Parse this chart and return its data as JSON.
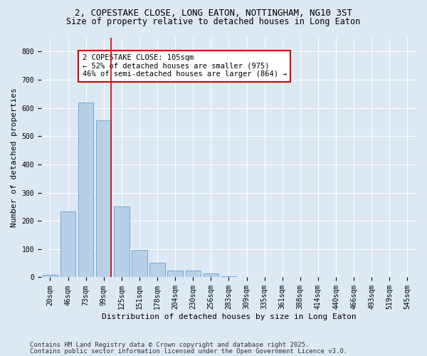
{
  "title_line1": "2, COPESTAKE CLOSE, LONG EATON, NOTTINGHAM, NG10 3ST",
  "title_line2": "Size of property relative to detached houses in Long Eaton",
  "xlabel": "Distribution of detached houses by size in Long Eaton",
  "ylabel": "Number of detached properties",
  "categories": [
    "20sqm",
    "46sqm",
    "73sqm",
    "99sqm",
    "125sqm",
    "151sqm",
    "178sqm",
    "204sqm",
    "230sqm",
    "256sqm",
    "283sqm",
    "309sqm",
    "335sqm",
    "361sqm",
    "388sqm",
    "414sqm",
    "440sqm",
    "466sqm",
    "493sqm",
    "519sqm",
    "545sqm"
  ],
  "values": [
    10,
    232,
    620,
    555,
    252,
    96,
    52,
    25,
    25,
    15,
    4,
    2,
    0,
    0,
    0,
    0,
    0,
    0,
    0,
    0,
    0
  ],
  "bar_color": "#b8cfe8",
  "bar_edge_color": "#6a9fc8",
  "background_color": "#dde8f5",
  "grid_color": "#ffffff",
  "vline_color": "#cc0000",
  "annotation_text": "2 COPESTAKE CLOSE: 105sqm\n← 52% of detached houses are smaller (975)\n46% of semi-detached houses are larger (864) →",
  "annotation_box_color": "#ffffff",
  "annotation_box_edge": "#cc0000",
  "ylim": [
    0,
    850
  ],
  "yticks": [
    0,
    100,
    200,
    300,
    400,
    500,
    600,
    700,
    800
  ],
  "footer_line1": "Contains HM Land Registry data © Crown copyright and database right 2025.",
  "footer_line2": "Contains public sector information licensed under the Open Government Licence v3.0.",
  "title_fontsize": 9,
  "subtitle_fontsize": 8.5,
  "axis_label_fontsize": 8,
  "tick_fontsize": 7,
  "annotation_fontsize": 7.5,
  "footer_fontsize": 6.5
}
